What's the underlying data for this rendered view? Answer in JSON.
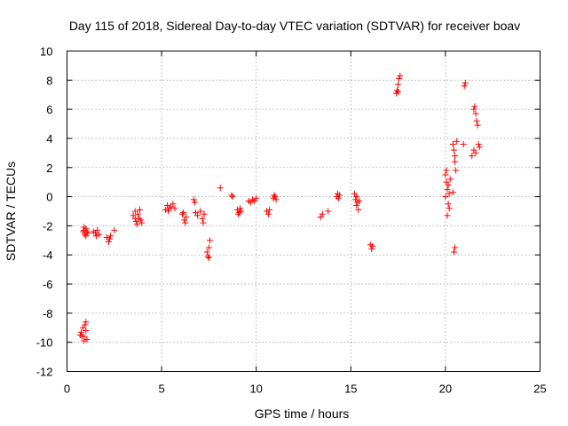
{
  "chart_data": {
    "type": "scatter",
    "title": "Day 115 of 2018, Sidereal Day-to-day VTEC variation (SDTVAR) for receiver boav",
    "xlabel": "GPS time / hours",
    "ylabel": "SDTVAR / TECUs",
    "xlim": [
      0,
      25
    ],
    "ylim": [
      -12,
      10
    ],
    "xticks": [
      0,
      5,
      10,
      15,
      20,
      25
    ],
    "yticks": [
      -12,
      -10,
      -8,
      -6,
      -4,
      -2,
      0,
      2,
      4,
      6,
      8,
      10
    ],
    "xtick_labels": [
      "0",
      "5",
      "10",
      "15",
      "20",
      "25"
    ],
    "ytick_labels": [
      "-12",
      "-10",
      "-8",
      "-6",
      "-4",
      "-2",
      "0",
      "2",
      "4",
      "6",
      "8",
      "10"
    ],
    "grid": true,
    "marker": "+",
    "color": "#ff0000",
    "series": [
      {
        "name": "SDTVAR",
        "points": [
          [
            0.7,
            -9.5
          ],
          [
            0.75,
            -9.3
          ],
          [
            0.8,
            -9.6
          ],
          [
            0.85,
            -9.0
          ],
          [
            0.9,
            -9.6
          ],
          [
            0.95,
            -8.8
          ],
          [
            1.0,
            -9.2
          ],
          [
            1.05,
            -9.8
          ],
          [
            1.0,
            -8.6
          ],
          [
            0.9,
            -9.9
          ],
          [
            0.85,
            -2.4
          ],
          [
            0.9,
            -2.3
          ],
          [
            0.95,
            -2.6
          ],
          [
            1.0,
            -2.2
          ],
          [
            1.05,
            -2.4
          ],
          [
            1.1,
            -2.5
          ],
          [
            1.0,
            -2.7
          ],
          [
            0.9,
            -2.1
          ],
          [
            1.4,
            -2.4
          ],
          [
            1.5,
            -2.5
          ],
          [
            1.6,
            -2.3
          ],
          [
            1.7,
            -2.6
          ],
          [
            1.55,
            -2.7
          ],
          [
            2.1,
            -2.8
          ],
          [
            2.2,
            -3.1
          ],
          [
            2.3,
            -2.7
          ],
          [
            2.25,
            -2.9
          ],
          [
            2.5,
            -2.3
          ],
          [
            3.5,
            -1.3
          ],
          [
            3.6,
            -1.0
          ],
          [
            3.65,
            -1.7
          ],
          [
            3.7,
            -1.9
          ],
          [
            3.75,
            -1.2
          ],
          [
            3.8,
            -1.5
          ],
          [
            3.85,
            -0.9
          ],
          [
            3.9,
            -1.6
          ],
          [
            3.95,
            -1.8
          ],
          [
            3.6,
            -1.5
          ],
          [
            5.2,
            -0.9
          ],
          [
            5.3,
            -0.6
          ],
          [
            5.4,
            -0.8
          ],
          [
            5.5,
            -0.7
          ],
          [
            5.6,
            -0.5
          ],
          [
            5.7,
            -0.8
          ],
          [
            5.35,
            -1.0
          ],
          [
            6.1,
            -1.2
          ],
          [
            6.2,
            -1.6
          ],
          [
            6.3,
            -1.4
          ],
          [
            6.25,
            -1.8
          ],
          [
            6.15,
            -1.1
          ],
          [
            6.7,
            -0.2
          ],
          [
            6.75,
            -0.4
          ],
          [
            6.8,
            -1.1
          ],
          [
            6.9,
            -1.3
          ],
          [
            7.05,
            -1.0
          ],
          [
            7.15,
            -1.5
          ],
          [
            7.2,
            -1.8
          ],
          [
            7.25,
            -1.2
          ],
          [
            7.4,
            -3.8
          ],
          [
            7.45,
            -4.1
          ],
          [
            7.5,
            -3.5
          ],
          [
            7.55,
            -3.0
          ],
          [
            7.5,
            -4.2
          ],
          [
            8.1,
            0.6
          ],
          [
            8.7,
            0.1
          ],
          [
            8.75,
            0.0
          ],
          [
            9.0,
            -0.9
          ],
          [
            9.1,
            -1.1
          ],
          [
            9.15,
            -0.8
          ],
          [
            9.2,
            -1.0
          ],
          [
            9.05,
            -1.2
          ],
          [
            9.6,
            -0.3
          ],
          [
            9.7,
            -0.4
          ],
          [
            9.8,
            -0.2
          ],
          [
            9.9,
            -0.3
          ],
          [
            10.0,
            -0.1
          ],
          [
            10.55,
            -1.0
          ],
          [
            10.65,
            -1.2
          ],
          [
            10.7,
            -0.9
          ],
          [
            10.9,
            -0.1
          ],
          [
            11.0,
            0.0
          ],
          [
            11.05,
            -0.2
          ],
          [
            10.95,
            0.1
          ],
          [
            13.4,
            -1.4
          ],
          [
            13.5,
            -1.2
          ],
          [
            13.8,
            -1.0
          ],
          [
            14.25,
            0.0
          ],
          [
            14.3,
            0.2
          ],
          [
            14.35,
            -0.1
          ],
          [
            14.4,
            0.1
          ],
          [
            15.2,
            0.2
          ],
          [
            15.25,
            -0.2
          ],
          [
            15.3,
            -0.6
          ],
          [
            15.35,
            -0.4
          ],
          [
            15.4,
            -0.9
          ],
          [
            15.45,
            -0.3
          ],
          [
            15.3,
            0.0
          ],
          [
            16.05,
            -3.3
          ],
          [
            16.1,
            -3.6
          ],
          [
            16.15,
            -3.4
          ],
          [
            17.4,
            7.1
          ],
          [
            17.45,
            7.3
          ],
          [
            17.5,
            7.7
          ],
          [
            17.55,
            8.1
          ],
          [
            17.6,
            8.3
          ],
          [
            17.5,
            7.2
          ],
          [
            20.0,
            1.5
          ],
          [
            20.05,
            1.0
          ],
          [
            20.1,
            0.5
          ],
          [
            20.15,
            -0.5
          ],
          [
            20.2,
            0.2
          ],
          [
            20.1,
            -1.3
          ],
          [
            20.05,
            1.8
          ],
          [
            20.15,
            0.8
          ],
          [
            20.2,
            -0.8
          ],
          [
            20.25,
            1.2
          ],
          [
            20.0,
            0.0
          ],
          [
            20.4,
            3.6
          ],
          [
            20.45,
            3.2
          ],
          [
            20.5,
            2.4
          ],
          [
            20.55,
            1.8
          ],
          [
            20.6,
            3.8
          ],
          [
            20.45,
            -3.8
          ],
          [
            20.5,
            -3.5
          ],
          [
            20.4,
            0.3
          ],
          [
            20.5,
            2.8
          ],
          [
            20.95,
            3.6
          ],
          [
            21.0,
            7.6
          ],
          [
            21.05,
            7.8
          ],
          [
            21.4,
            2.8
          ],
          [
            21.5,
            3.2
          ],
          [
            21.55,
            6.2
          ],
          [
            21.6,
            5.7
          ],
          [
            21.65,
            5.2
          ],
          [
            21.7,
            4.9
          ],
          [
            21.75,
            3.6
          ],
          [
            21.8,
            3.4
          ],
          [
            21.6,
            3.0
          ],
          [
            21.5,
            6.0
          ]
        ]
      }
    ]
  }
}
